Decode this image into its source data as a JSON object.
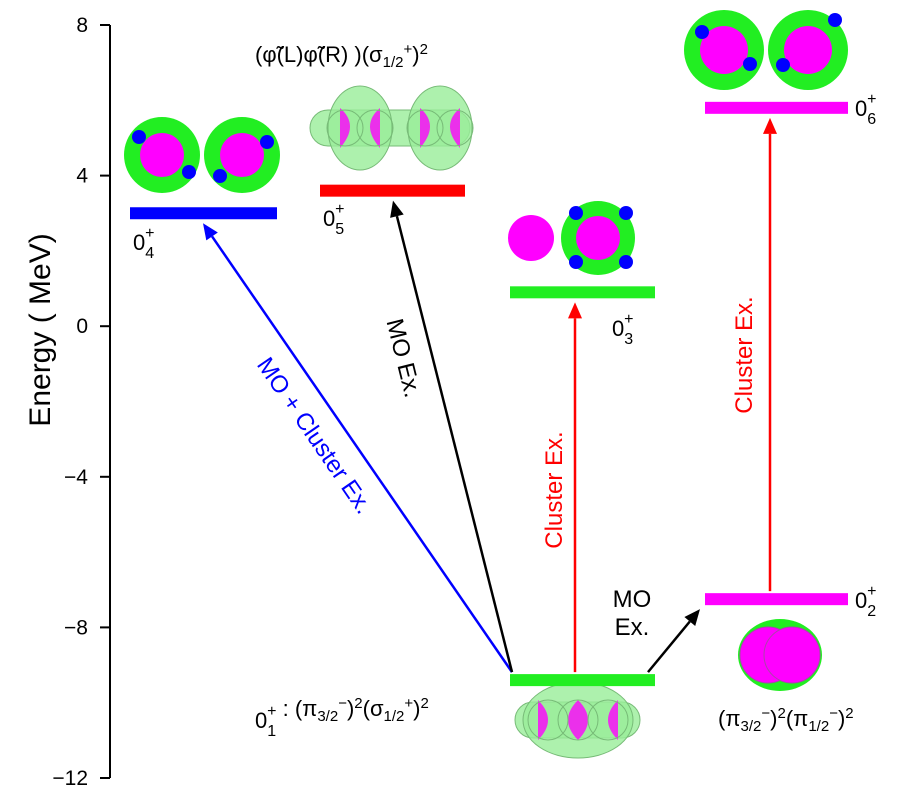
{
  "chart_data": {
    "type": "levels",
    "y_label": "Energy ( MeV)",
    "ylim": [
      -12,
      8
    ],
    "yticks": [
      {
        "value": -12,
        "label": "−12"
      },
      {
        "value": -8,
        "label": "−8"
      },
      {
        "value": -4,
        "label": "−4"
      },
      0,
      4,
      8
    ],
    "levels": [
      {
        "name": "0",
        "sub": "1",
        "sup": "+",
        "energy": -9.4,
        "color": "#22ee22",
        "configuration": [
          {
            "text": " : (π"
          },
          {
            "sub": "3/2"
          },
          {
            "sup": "−"
          },
          {
            "text": ")"
          },
          {
            "sup": "2"
          },
          {
            "text": "(σ"
          },
          {
            "sub": "1/2"
          },
          {
            "sup": "+"
          },
          {
            "text": ")"
          },
          {
            "sup": "2"
          }
        ]
      },
      {
        "name": "0",
        "sub": "2",
        "sup": "+",
        "energy": -7.25,
        "color": "#ff00ff",
        "configuration": [
          {
            "text": "(π"
          },
          {
            "sub": "3/2"
          },
          {
            "sup": "−"
          },
          {
            "text": ")"
          },
          {
            "sup": "2"
          },
          {
            "text": "(π"
          },
          {
            "sub": "1/2"
          },
          {
            "sup": "−"
          },
          {
            "text": ")"
          },
          {
            "sup": "2"
          }
        ]
      },
      {
        "name": "0",
        "sub": "3",
        "sup": "+",
        "energy": 0.9,
        "color": "#22ee22"
      },
      {
        "name": "0",
        "sub": "4",
        "sup": "+",
        "energy": 3.0,
        "color": "#0000ff"
      },
      {
        "name": "0",
        "sub": "5",
        "sup": "+",
        "energy": 3.6,
        "color": "#ff0000",
        "configuration": [
          {
            "text": "(φ̃(L)φ̃(R) )(σ"
          },
          {
            "sub": "1/2"
          },
          {
            "sup": "+"
          },
          {
            "text": ")"
          },
          {
            "sup": "2"
          }
        ]
      },
      {
        "name": "0",
        "sub": "6",
        "sup": "+",
        "energy": 5.8,
        "color": "#ff00ff"
      }
    ],
    "transitions": [
      {
        "from": 0,
        "to": 3,
        "label_lines": [
          "MO + Cluster Ex."
        ],
        "color": "#0000ff"
      },
      {
        "from": 0,
        "to": 4,
        "label_lines": [
          "MO Ex."
        ],
        "color": "#000000"
      },
      {
        "from": 0,
        "to": 2,
        "label_lines": [
          "Cluster Ex."
        ],
        "color": "#ff0000"
      },
      {
        "from": 0,
        "to": 1,
        "label_lines": [
          "MO",
          "Ex."
        ],
        "color": "#000000"
      },
      {
        "from": 1,
        "to": 5,
        "label_lines": [
          "Cluster Ex."
        ],
        "color": "#ff0000"
      }
    ]
  }
}
